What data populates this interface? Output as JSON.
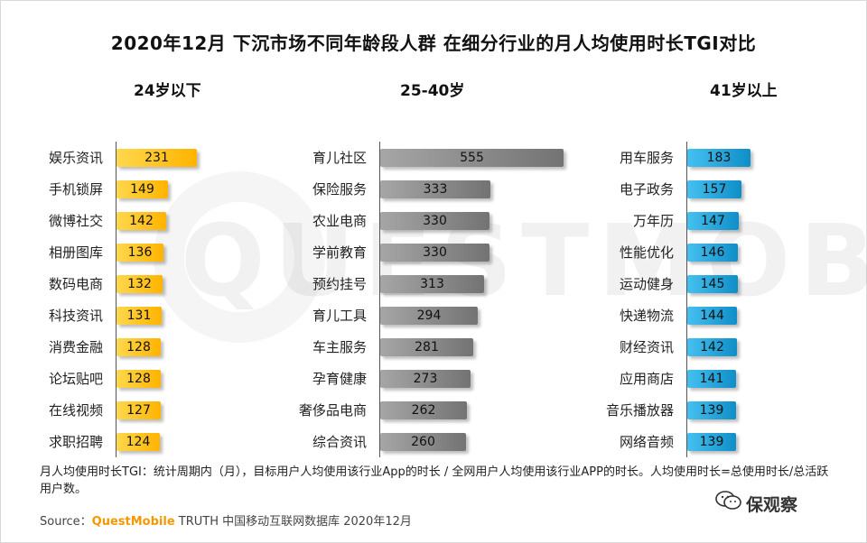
{
  "title": "2020年12月 下沉市场不同年龄段人群 在细分行业的月人均使用时长TGI对比",
  "watermark": "QUESTMOBILE",
  "chart_data": [
    {
      "type": "bar",
      "group": "24岁以下",
      "color": "#ffc000",
      "categories": [
        "娱乐资讯",
        "手机锁屏",
        "微博社交",
        "相册图库",
        "数码电商",
        "科技资讯",
        "消费金融",
        "论坛贴吧",
        "在线视频",
        "求职招聘"
      ],
      "values": [
        231,
        149,
        142,
        136,
        132,
        131,
        128,
        128,
        127,
        124
      ]
    },
    {
      "type": "bar",
      "group": "25-40岁",
      "color": "#8c8c8c",
      "categories": [
        "育儿社区",
        "保险服务",
        "农业电商",
        "学前教育",
        "预约挂号",
        "育儿工具",
        "车主服务",
        "孕育健康",
        "奢侈品电商",
        "综合资讯"
      ],
      "values": [
        555,
        333,
        330,
        330,
        313,
        294,
        281,
        273,
        262,
        260
      ]
    },
    {
      "type": "bar",
      "group": "41岁以上",
      "color": "#1a9fd6",
      "categories": [
        "用车服务",
        "电子政务",
        "万年历",
        "性能优化",
        "运动健身",
        "快递物流",
        "财经资讯",
        "应用商店",
        "音乐播放器",
        "网络音频"
      ],
      "values": [
        183,
        157,
        147,
        146,
        145,
        144,
        142,
        141,
        139,
        139
      ]
    }
  ],
  "note": "月人均使用时长TGI：统计周期内（月），目标用户人均使用该行业App的时长 / 全网用户人均使用该行业APP的时长。人均使用时长=总使用时长/总活跃用户数。",
  "source": {
    "prefix": "Source：",
    "brand": "QuestMobile",
    "suffix": " TRUTH 中国移动互联网数据库 2020年12月"
  },
  "logo": "保观察"
}
